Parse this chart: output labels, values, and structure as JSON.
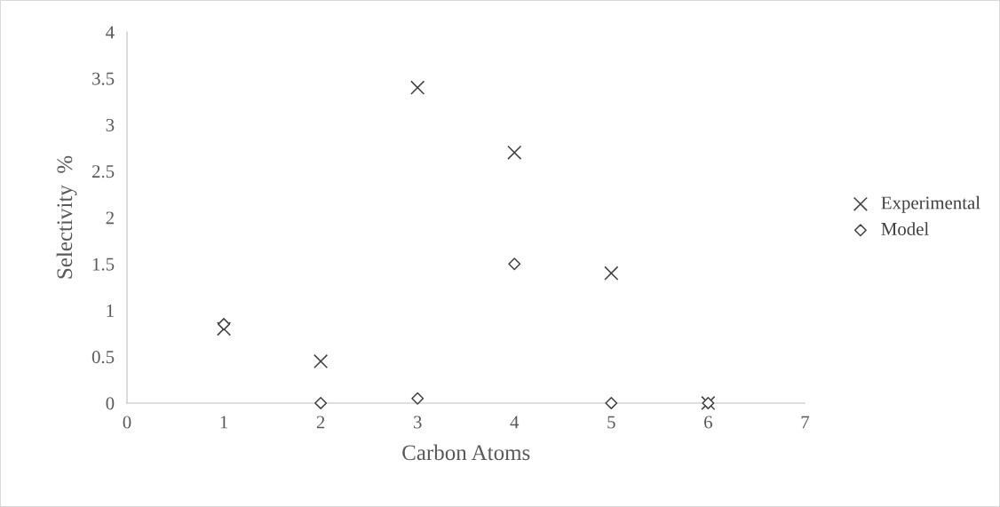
{
  "chart_data": {
    "type": "scatter",
    "xlabel": "Carbon Atoms",
    "ylabel": "Selectivity  %",
    "x": [
      1,
      2,
      3,
      4,
      5,
      6
    ],
    "series": [
      {
        "name": "Experimental",
        "color": "#404040",
        "marker": "cross",
        "values": [
          0.8,
          0.45,
          3.4,
          2.7,
          1.4,
          0
        ]
      },
      {
        "name": "Model",
        "color": "#404040",
        "marker": "diamond",
        "values": [
          0.85,
          0,
          0.05,
          1.5,
          0,
          0
        ]
      }
    ],
    "xlim": [
      0,
      7
    ],
    "xticks": [
      0,
      1,
      2,
      3,
      4,
      5,
      6,
      7
    ],
    "ylim": [
      0,
      4
    ],
    "yticks": [
      0,
      0.5,
      1,
      1.5,
      2,
      2.5,
      3,
      3.5,
      4
    ],
    "grid": false,
    "legend": "right"
  }
}
